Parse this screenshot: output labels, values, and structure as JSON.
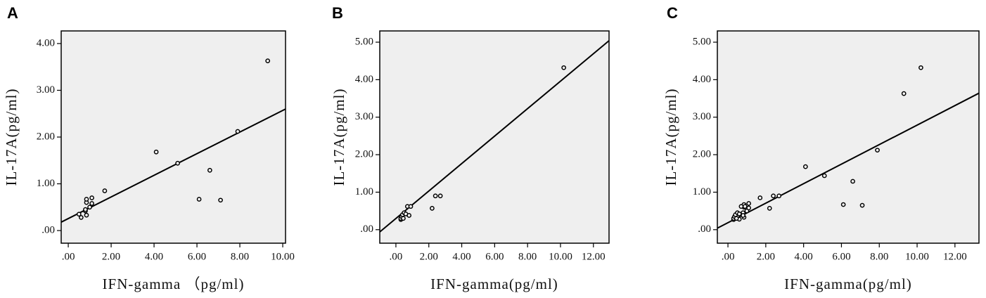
{
  "chart_data": [
    {
      "type": "scatter",
      "label": "A",
      "x_label": "IFN-gamma （pg/ml)",
      "y_label": "IL-17A(pg/ml)",
      "x": [
        0.5,
        0.6,
        0.8,
        0.8,
        0.85,
        0.85,
        0.85,
        1.0,
        1.1,
        1.1,
        1.7,
        4.1,
        5.1,
        6.1,
        6.6,
        7.1,
        7.9,
        9.3
      ],
      "values": [
        0.35,
        0.28,
        0.42,
        0.45,
        0.33,
        0.6,
        0.67,
        0.5,
        0.58,
        0.7,
        0.85,
        1.68,
        1.44,
        0.67,
        1.29,
        0.65,
        2.12,
        3.63
      ],
      "fit": {
        "x": [
          -0.33,
          10.13
        ],
        "values": [
          0.18,
          2.6
        ]
      },
      "xlim": [
        -0.33,
        10.13
      ],
      "ylim": [
        -0.27,
        4.27
      ],
      "xticks": [
        {
          "value": 0,
          "label": ".00"
        },
        {
          "value": 2,
          "label": "2.00"
        },
        {
          "value": 4,
          "label": "4.00"
        },
        {
          "value": 6,
          "label": "6.00"
        },
        {
          "value": 8,
          "label": "8.00"
        },
        {
          "value": 10,
          "label": "10.00"
        }
      ],
      "yticks": [
        {
          "value": 0,
          "label": ".00"
        },
        {
          "value": 1,
          "label": "1.00"
        },
        {
          "value": 2,
          "label": "2.00"
        },
        {
          "value": 3,
          "label": "3.00"
        },
        {
          "value": 4,
          "label": "4.00"
        }
      ]
    },
    {
      "type": "scatter",
      "label": "B",
      "x_label": "IFN-gamma(pg/ml)",
      "y_label": "IL-17A(pg/ml)",
      "x": [
        0.3,
        0.3,
        0.35,
        0.4,
        0.45,
        0.5,
        0.6,
        0.7,
        0.8,
        0.9,
        2.2,
        2.4,
        2.7,
        10.2
      ],
      "values": [
        0.27,
        0.3,
        0.35,
        0.4,
        0.3,
        0.45,
        0.42,
        0.62,
        0.38,
        0.62,
        0.57,
        0.9,
        0.9,
        4.32
      ],
      "fit": {
        "x": [
          -0.98,
          12.95
        ],
        "values": [
          -0.06,
          5.04
        ]
      },
      "xlim": [
        -0.98,
        12.95
      ],
      "ylim": [
        -0.36,
        5.3
      ],
      "xticks": [
        {
          "value": 0,
          "label": ".00"
        },
        {
          "value": 2,
          "label": "2.00"
        },
        {
          "value": 4,
          "label": "4.00"
        },
        {
          "value": 6,
          "label": "6.00"
        },
        {
          "value": 8,
          "label": "8.00"
        },
        {
          "value": 10,
          "label": "10.00"
        },
        {
          "value": 12,
          "label": "12.00"
        }
      ],
      "yticks": [
        {
          "value": 0,
          "label": ".00"
        },
        {
          "value": 1,
          "label": "1.00"
        },
        {
          "value": 2,
          "label": "2.00"
        },
        {
          "value": 3,
          "label": "3.00"
        },
        {
          "value": 4,
          "label": "4.00"
        },
        {
          "value": 5,
          "label": "5.00"
        }
      ]
    },
    {
      "type": "scatter",
      "label": "C",
      "x_label": "IFN-gamma(pg/ml)",
      "y_label": "IL-17A(pg/ml)",
      "x": [
        0.5,
        0.6,
        0.8,
        0.8,
        0.85,
        0.85,
        0.85,
        1.0,
        1.1,
        1.1,
        1.7,
        4.1,
        5.1,
        6.1,
        6.6,
        7.1,
        7.9,
        9.3,
        0.3,
        0.3,
        0.35,
        0.4,
        0.45,
        0.5,
        0.6,
        0.7,
        0.8,
        0.9,
        2.2,
        2.4,
        2.7,
        10.2
      ],
      "values": [
        0.35,
        0.28,
        0.42,
        0.45,
        0.33,
        0.6,
        0.67,
        0.5,
        0.58,
        0.7,
        0.85,
        1.68,
        1.44,
        0.67,
        1.29,
        0.65,
        2.12,
        3.63,
        0.27,
        0.3,
        0.35,
        0.4,
        0.3,
        0.45,
        0.42,
        0.62,
        0.38,
        0.62,
        0.57,
        0.9,
        0.9,
        4.32
      ],
      "fit": {
        "x": [
          -0.56,
          13.27
        ],
        "values": [
          0.04,
          3.64
        ]
      },
      "xlim": [
        -0.56,
        13.27
      ],
      "ylim": [
        -0.36,
        5.3
      ],
      "xticks": [
        {
          "value": 0,
          "label": ".00"
        },
        {
          "value": 2,
          "label": "2.00"
        },
        {
          "value": 4,
          "label": "4.00"
        },
        {
          "value": 6,
          "label": "6.00"
        },
        {
          "value": 8,
          "label": "8.00"
        },
        {
          "value": 10,
          "label": "10.00"
        },
        {
          "value": 12,
          "label": "12.00"
        }
      ],
      "yticks": [
        {
          "value": 0,
          "label": ".00"
        },
        {
          "value": 1,
          "label": "1.00"
        },
        {
          "value": 2,
          "label": "2.00"
        },
        {
          "value": 3,
          "label": "3.00"
        },
        {
          "value": 4,
          "label": "4.00"
        },
        {
          "value": 5,
          "label": "5.00"
        }
      ]
    }
  ]
}
